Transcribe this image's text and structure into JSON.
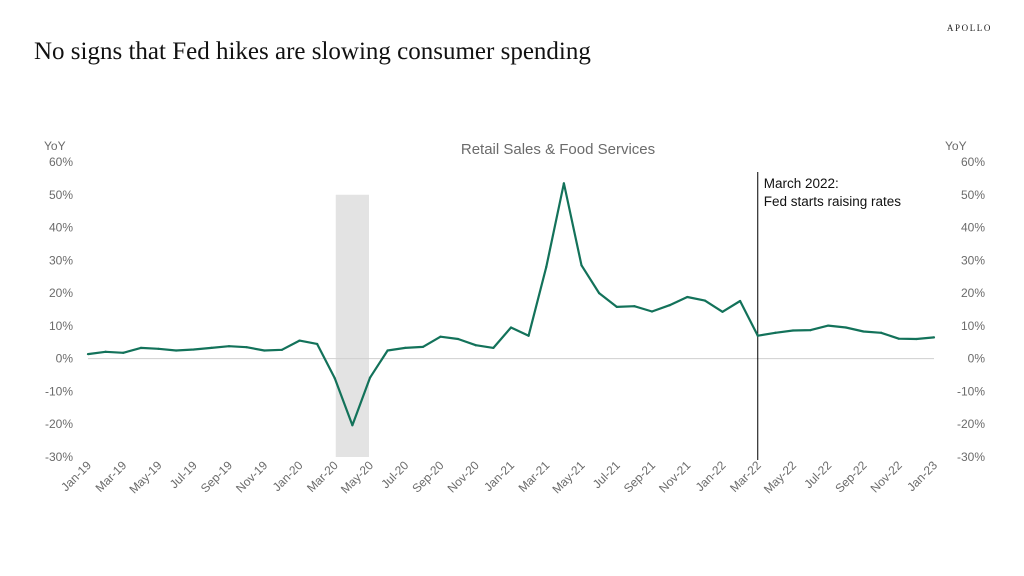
{
  "header": {
    "brand": "APOLLO",
    "title": "No signs that Fed hikes are slowing consumer spending"
  },
  "colors": {
    "series": "#13725a",
    "shade": "#e3e3e3",
    "axis_text": "#6b6b6b",
    "annotation": "#000000"
  },
  "chart_data": {
    "type": "line",
    "title": "Retail Sales & Food Services",
    "ylabel_left": "YoY",
    "ylabel_right": "YoY",
    "ylim": [
      -30,
      60
    ],
    "y_ticks": [
      60,
      50,
      40,
      30,
      20,
      10,
      0,
      -10,
      -20,
      -30
    ],
    "y_tick_labels": [
      "60%",
      "50%",
      "40%",
      "30%",
      "20%",
      "10%",
      "0%",
      "-10%",
      "-20%",
      "-30%"
    ],
    "x_tick_labels": [
      "Jan-19",
      "Mar-19",
      "May-19",
      "Jul-19",
      "Sep-19",
      "Nov-19",
      "Jan-20",
      "Mar-20",
      "May-20",
      "Jul-20",
      "Sep-20",
      "Nov-20",
      "Jan-21",
      "Mar-21",
      "May-21",
      "Jul-21",
      "Sep-21",
      "Nov-21",
      "Jan-22",
      "Mar-22",
      "May-22",
      "Jul-22",
      "Sep-22",
      "Nov-22",
      "Jan-23"
    ],
    "x": [
      "Jan-19",
      "Feb-19",
      "Mar-19",
      "Apr-19",
      "May-19",
      "Jun-19",
      "Jul-19",
      "Aug-19",
      "Sep-19",
      "Oct-19",
      "Nov-19",
      "Dec-19",
      "Jan-20",
      "Feb-20",
      "Mar-20",
      "Apr-20",
      "May-20",
      "Jun-20",
      "Jul-20",
      "Aug-20",
      "Sep-20",
      "Oct-20",
      "Nov-20",
      "Dec-20",
      "Jan-21",
      "Feb-21",
      "Mar-21",
      "Apr-21",
      "May-21",
      "Jun-21",
      "Jul-21",
      "Aug-21",
      "Sep-21",
      "Oct-21",
      "Nov-21",
      "Dec-21",
      "Jan-22",
      "Feb-22",
      "Mar-22",
      "Apr-22",
      "May-22",
      "Jun-22",
      "Jul-22",
      "Aug-22",
      "Sep-22",
      "Oct-22",
      "Nov-22",
      "Dec-22",
      "Jan-23"
    ],
    "series": [
      {
        "values": [
          1.4,
          2.1,
          1.8,
          3.3,
          3.0,
          2.5,
          2.8,
          3.3,
          3.8,
          3.5,
          2.5,
          2.7,
          5.5,
          4.5,
          -6.0,
          -20.3,
          -5.8,
          2.5,
          3.3,
          3.6,
          6.7,
          6.0,
          4.1,
          3.3,
          9.5,
          7.0,
          28.0,
          53.5,
          28.5,
          20.0,
          15.8,
          16.0,
          14.4,
          16.3,
          18.8,
          17.7,
          14.3,
          17.6,
          7.0,
          7.9,
          8.6,
          8.7,
          10.1,
          9.5,
          8.3,
          7.9,
          6.1,
          6.0,
          6.5
        ]
      }
    ],
    "shaded_period": {
      "from": "Mar-20",
      "to": "May-20",
      "range": [
        -30,
        50
      ]
    },
    "annotation": {
      "at": "Mar-22",
      "line1": "March 2022:",
      "line2": "Fed starts raising rates"
    },
    "grid": false,
    "legend": "none"
  }
}
